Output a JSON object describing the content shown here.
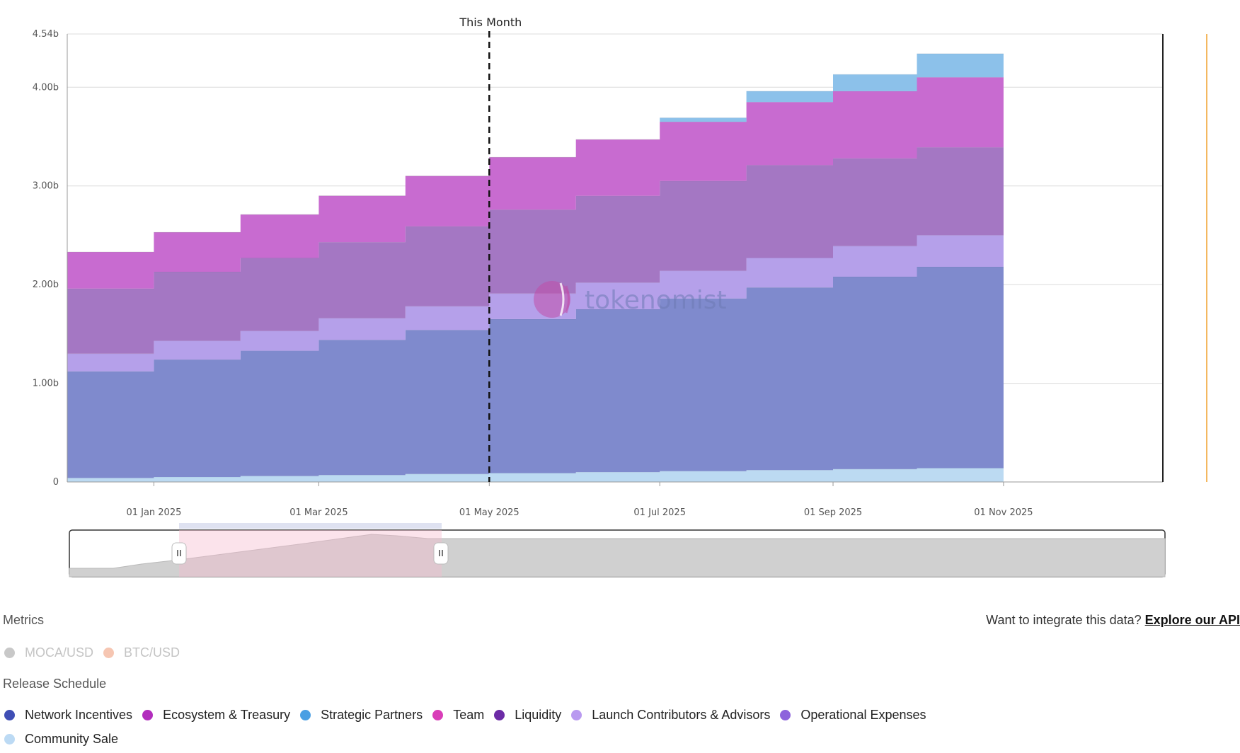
{
  "chart_data": {
    "type": "area",
    "stacked": true,
    "step": true,
    "marker_label": "This Month",
    "marker_x": "2025-05-01",
    "y_ticks": [
      "0",
      "1.00b",
      "2.00b",
      "3.00b",
      "4.00b",
      "4.54b"
    ],
    "y_tick_values": [
      0,
      1.0,
      2.0,
      3.0,
      4.0,
      4.54
    ],
    "ylim": [
      0,
      4.54
    ],
    "x_ticks": [
      "01 Jan 2025",
      "01 Mar 2025",
      "01 May 2025",
      "01 Jul 2025",
      "01 Sep 2025",
      "01 Nov 2025"
    ],
    "x_tick_dates": [
      "2025-01-01",
      "2025-03-01",
      "2025-05-01",
      "2025-07-01",
      "2025-09-01",
      "2025-11-01"
    ],
    "x_range": [
      "2024-12-01",
      "2025-12-28"
    ],
    "x": [
      "2024-12-01",
      "2025-01-01",
      "2025-02-01",
      "2025-03-01",
      "2025-04-01",
      "2025-05-01",
      "2025-06-01",
      "2025-07-01",
      "2025-08-01",
      "2025-09-01",
      "2025-10-01"
    ],
    "x_end": "2025-11-01",
    "series": [
      {
        "name": "Community Sale",
        "color": "#bcdaf2",
        "values": [
          0.04,
          0.05,
          0.06,
          0.07,
          0.08,
          0.09,
          0.1,
          0.11,
          0.12,
          0.13,
          0.14
        ]
      },
      {
        "name": "Network Incentives",
        "color": "#7f8acd",
        "values": [
          1.08,
          1.19,
          1.27,
          1.37,
          1.46,
          1.56,
          1.65,
          1.75,
          1.85,
          1.95,
          2.04
        ]
      },
      {
        "name": "Launch Contributors & Advisors",
        "color": "#b5a0ea",
        "values": [
          0.18,
          0.19,
          0.2,
          0.22,
          0.24,
          0.26,
          0.27,
          0.28,
          0.3,
          0.31,
          0.32
        ]
      },
      {
        "name": "Operational Expenses",
        "color": "#a477c3",
        "values": [
          0.66,
          0.7,
          0.74,
          0.77,
          0.81,
          0.85,
          0.88,
          0.91,
          0.94,
          0.89,
          0.89
        ]
      },
      {
        "name": "Ecosystem & Treasury",
        "color": "#c86bd0",
        "values": [
          0.37,
          0.4,
          0.44,
          0.47,
          0.51,
          0.53,
          0.57,
          0.6,
          0.64,
          0.68,
          0.71
        ]
      },
      {
        "name": "Strategic Partners",
        "color": "#8cc1ea",
        "values": [
          0,
          0,
          0,
          0,
          0,
          0,
          0,
          0.04,
          0.11,
          0.17,
          0.24
        ]
      }
    ]
  },
  "watermark": {
    "text": "tokenomist"
  },
  "metrics": {
    "title": "Metrics",
    "items": [
      {
        "label": "MOCA/USD",
        "color": "#c8c8c8"
      },
      {
        "label": "BTC/USD",
        "color": "#f6c6b2"
      }
    ]
  },
  "release_schedule": {
    "title": "Release Schedule",
    "items": [
      {
        "label": "Network Incentives",
        "color": "#3f4eb5"
      },
      {
        "label": "Ecosystem & Treasury",
        "color": "#b22dbd"
      },
      {
        "label": "Strategic Partners",
        "color": "#4a9fe3"
      },
      {
        "label": "Team",
        "color": "#d93db8"
      },
      {
        "label": "Liquidity",
        "color": "#6c2ba6"
      },
      {
        "label": "Launch Contributors & Advisors",
        "color": "#b99af0"
      },
      {
        "label": "Operational Expenses",
        "color": "#8d63dc"
      },
      {
        "label": "Community Sale",
        "color": "#bcdaf4"
      }
    ]
  },
  "integrate": {
    "prompt": "Want to integrate this data?",
    "link": "Explore our API"
  }
}
